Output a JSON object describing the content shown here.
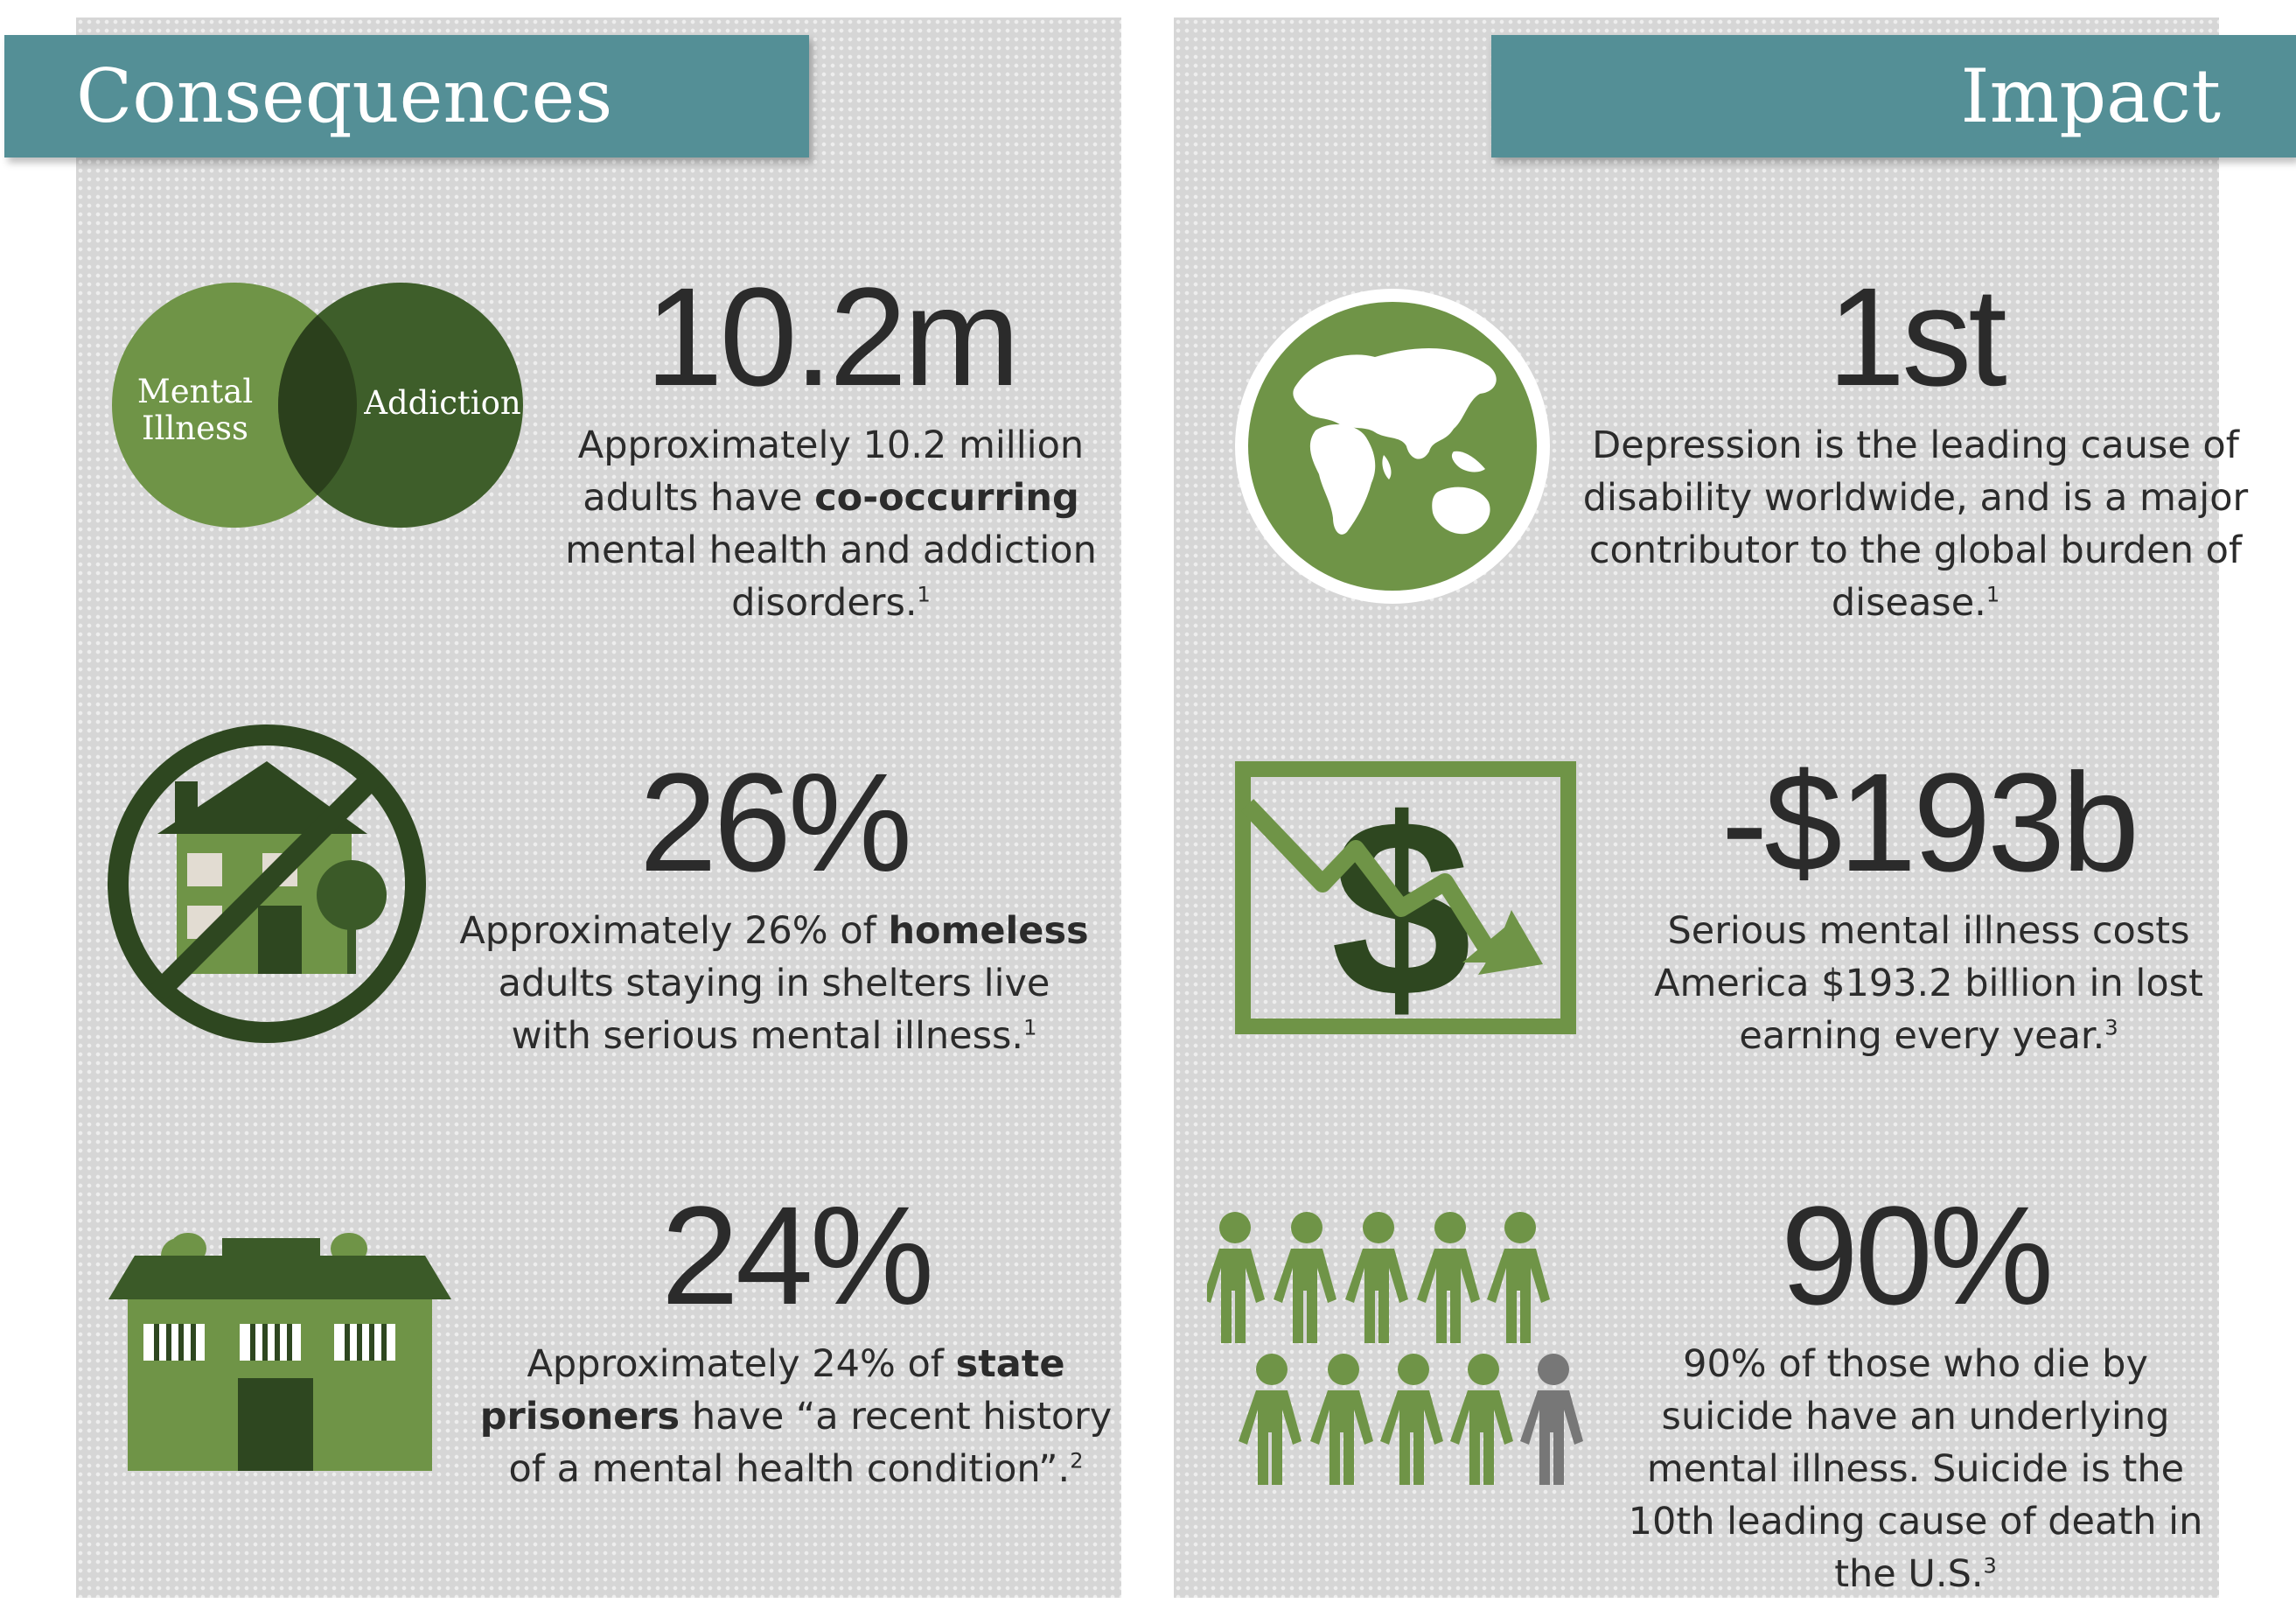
{
  "left": {
    "title": "Consequences",
    "stats": [
      {
        "value": "10.2m",
        "pre": "Approximately 10.2 million adults have ",
        "bold": "co-occurring",
        "post": " mental health and addiction disorders.",
        "ref": "1",
        "icon": "venn-diagram-icon",
        "venn_left": "Mental Illness",
        "venn_left_l1": "Mental",
        "venn_left_l2": "Illness",
        "venn_right": "Addiction"
      },
      {
        "value": "26%",
        "pre": "Approximately 26% of ",
        "bold": "homeless",
        "post": " adults staying in shelters live with serious mental illness.",
        "ref": "1",
        "icon": "no-house-icon"
      },
      {
        "value": "24%",
        "pre": "Approximately 24% of ",
        "bold": "state prisoners",
        "post": " have “a recent history of a mental health condition”.",
        "ref": "2",
        "icon": "prison-icon"
      }
    ]
  },
  "right": {
    "title": "Impact",
    "stats": [
      {
        "value": "1st",
        "text": "Depression is the leading cause of disability worldwide, and is a major contributor to the global burden of disease.",
        "ref": "1",
        "icon": "globe-icon"
      },
      {
        "value": "-$193b",
        "text": "Serious mental illness costs America $193.2 billion in lost earning every year.",
        "ref": "3",
        "icon": "dollar-down-chart-icon"
      },
      {
        "value": "90%",
        "text": "90% of those who die by suicide have an underlying mental illness. Suicide is the 10th leading cause of death in the U.S.",
        "ref": "3",
        "icon": "people-group-icon"
      }
    ]
  },
  "colors": {
    "teal": "#548f96",
    "green": "#6f9447",
    "dark_green": "#3b5a28",
    "gray_figure": "#777777",
    "panel_bg": "#d6d6d6"
  }
}
